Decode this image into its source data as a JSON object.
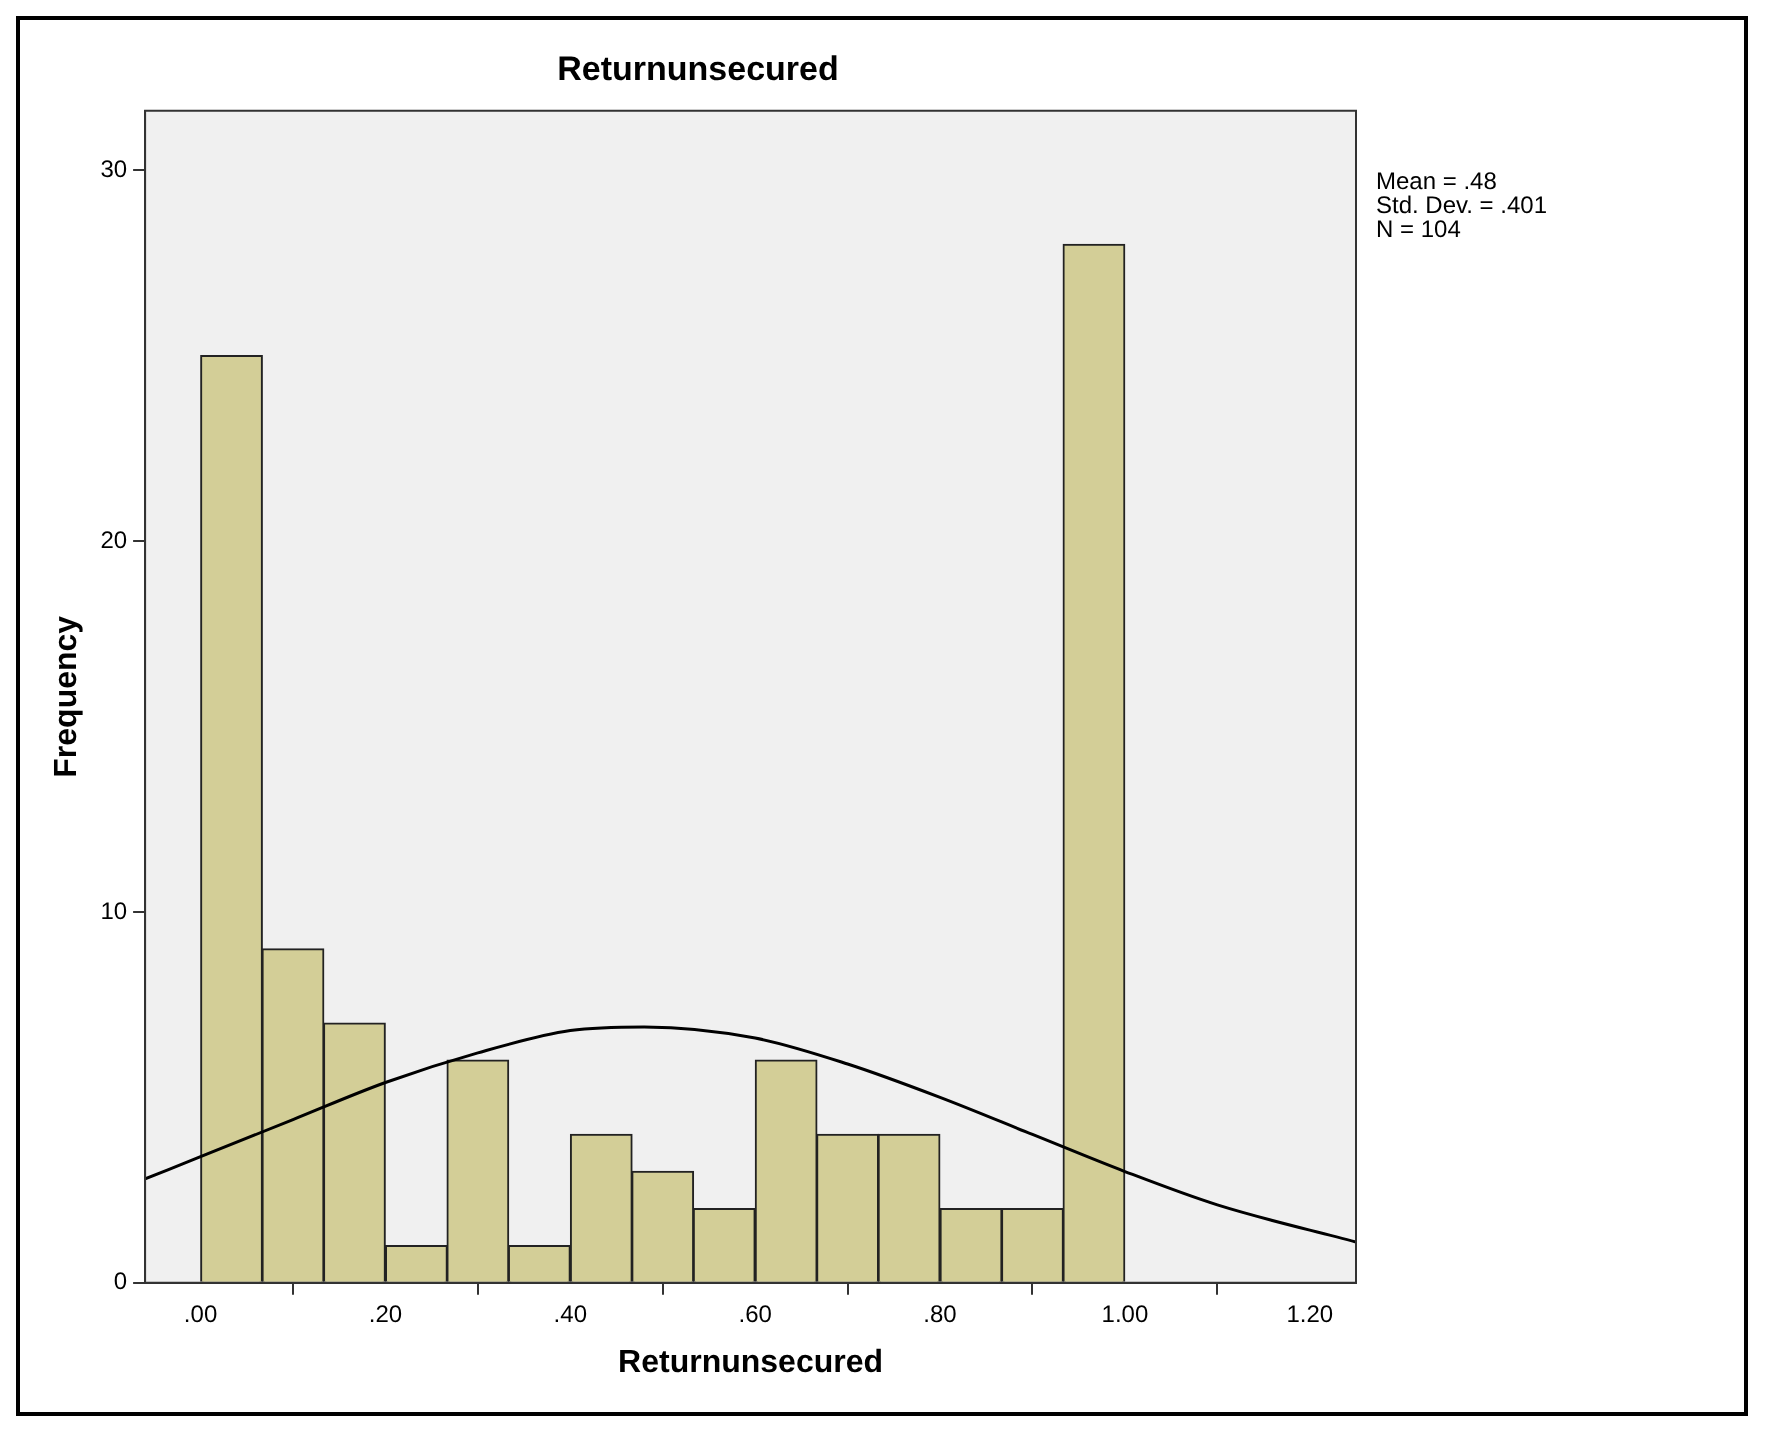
{
  "chart_data": {
    "type": "histogram",
    "title": "Returnunsecured",
    "xlabel": "Returnunsecured",
    "ylabel": "Frequency",
    "bins": [
      0,
      0.067,
      0.133,
      0.2,
      0.267,
      0.333,
      0.4,
      0.467,
      0.533,
      0.6,
      0.667,
      0.733,
      0.8,
      0.867,
      0.933,
      1
    ],
    "values": [
      25,
      9,
      7,
      1,
      6,
      1,
      4,
      3,
      2,
      6,
      4,
      4,
      2,
      2,
      28
    ],
    "color": "#d3ce97",
    "series": [
      {
        "type": "line",
        "color": "#000000",
        "x": [
          -0.06,
          0,
          0.1,
          0.2,
          0.3,
          0.4,
          0.48,
          0.6,
          0.7,
          0.8,
          0.9,
          1,
          1.1,
          1.25
        ],
        "values": [
          2.8,
          3.4,
          4.4,
          5.4,
          6.2,
          6.8,
          6.9,
          6.6,
          5.9,
          5,
          4,
          3,
          2.1,
          1.1
        ]
      }
    ],
    "xlim": [
      -0.06,
      1.25
    ],
    "xticks": [
      {
        "value": 0,
        "label": ".00"
      },
      {
        "value": 0.2,
        "label": ".20"
      },
      {
        "value": 0.4,
        "label": ".40"
      },
      {
        "value": 0.6,
        "label": ".60"
      },
      {
        "value": 0.8,
        "label": ".80"
      },
      {
        "value": 1,
        "label": "1.00"
      },
      {
        "value": 1.2,
        "label": "1.20"
      }
    ],
    "ylim": [
      0,
      31.6
    ],
    "yticks": [
      0,
      10,
      20,
      30
    ],
    "grid": false,
    "legend": false,
    "marker": "none",
    "line_style": "solid",
    "annotations": [
      "Mean = .48",
      "Std. Dev. = .401",
      "N = 104"
    ]
  }
}
